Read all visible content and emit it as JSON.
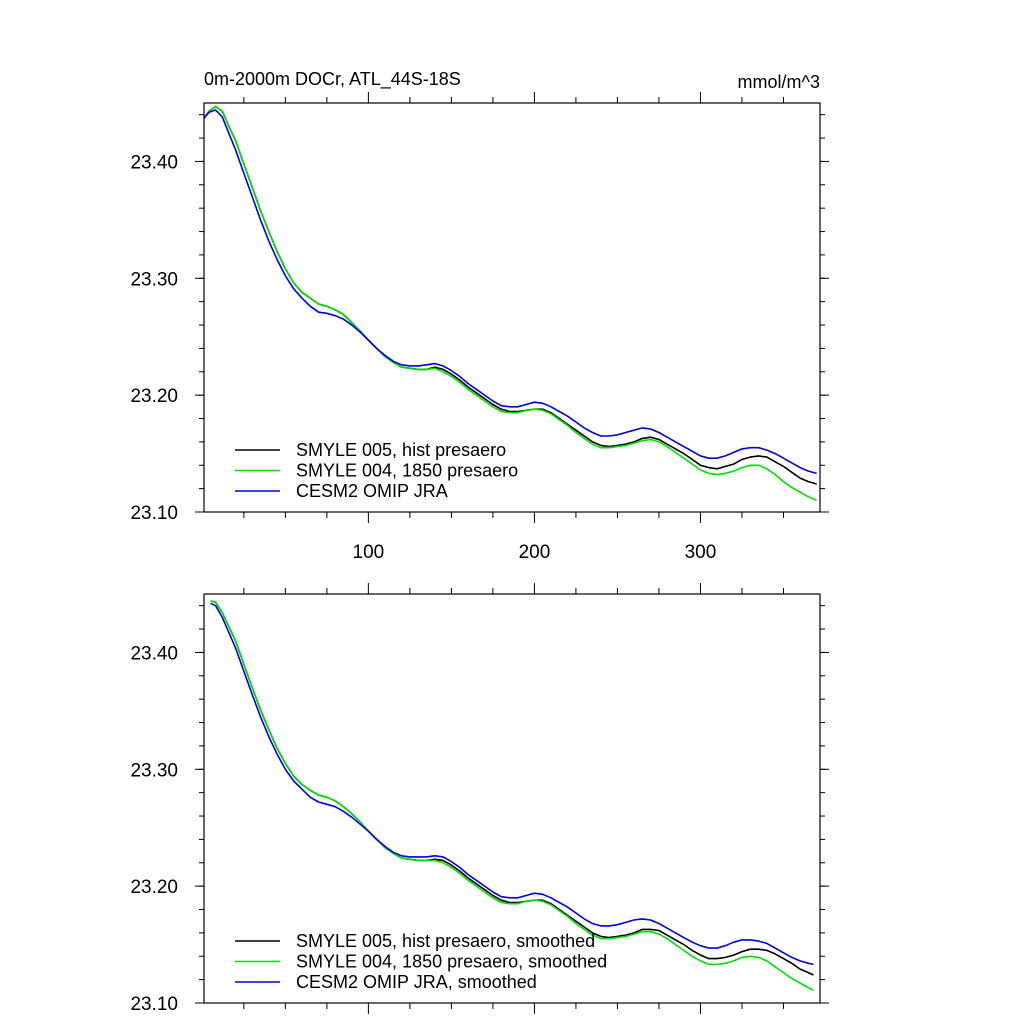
{
  "chart_data": [
    {
      "type": "line",
      "title": "0m-2000m DOCr, ATL_44S-18S",
      "units_label": "mmol/m^3",
      "xlim": [
        1,
        372
      ],
      "ylim": [
        23.1,
        23.45
      ],
      "x_ticks": [
        100,
        200,
        300
      ],
      "x_tick_labels": [
        "100",
        "200",
        "300"
      ],
      "y_ticks": [
        23.1,
        23.2,
        23.3,
        23.4
      ],
      "y_tick_labels": [
        "23.10",
        "23.20",
        "23.30",
        "23.40"
      ],
      "legend_position": "bottom-left",
      "grid": false,
      "series": [
        {
          "name": "SMYLE 005, hist presaero",
          "color": "#000000",
          "x": [
            1,
            4,
            8,
            12,
            16,
            20,
            25,
            30,
            35,
            40,
            45,
            50,
            55,
            60,
            65,
            70,
            75,
            80,
            85,
            90,
            95,
            100,
            105,
            110,
            115,
            120,
            125,
            130,
            135,
            140,
            145,
            150,
            155,
            160,
            165,
            170,
            175,
            180,
            185,
            190,
            195,
            200,
            205,
            210,
            215,
            220,
            225,
            230,
            235,
            240,
            245,
            250,
            255,
            260,
            265,
            270,
            275,
            280,
            285,
            290,
            295,
            300,
            305,
            310,
            315,
            320,
            325,
            330,
            335,
            340,
            345,
            350,
            355,
            360,
            365,
            370
          ],
          "y": [
            23.437,
            23.443,
            23.447,
            23.443,
            23.43,
            23.418,
            23.398,
            23.378,
            23.358,
            23.34,
            23.323,
            23.308,
            23.296,
            23.288,
            23.283,
            23.278,
            23.276,
            23.273,
            23.269,
            23.262,
            23.255,
            23.247,
            23.24,
            23.233,
            23.228,
            23.224,
            23.223,
            23.222,
            23.222,
            23.224,
            23.222,
            23.218,
            23.213,
            23.207,
            23.202,
            23.197,
            23.192,
            23.188,
            23.186,
            23.186,
            23.187,
            23.188,
            23.188,
            23.185,
            23.18,
            23.175,
            23.17,
            23.165,
            23.16,
            23.157,
            23.156,
            23.157,
            23.158,
            23.16,
            23.163,
            23.164,
            23.162,
            23.158,
            23.154,
            23.15,
            23.145,
            23.14,
            23.138,
            23.137,
            23.139,
            23.141,
            23.145,
            23.147,
            23.148,
            23.147,
            23.143,
            23.139,
            23.134,
            23.129,
            23.126,
            23.124
          ]
        },
        {
          "name": "SMYLE 004, 1850 presaero",
          "color": "#00e000",
          "x": [
            1,
            4,
            8,
            12,
            16,
            20,
            25,
            30,
            35,
            40,
            45,
            50,
            55,
            60,
            65,
            70,
            75,
            80,
            85,
            90,
            95,
            100,
            105,
            110,
            115,
            120,
            125,
            130,
            135,
            140,
            145,
            150,
            155,
            160,
            165,
            170,
            175,
            180,
            185,
            190,
            195,
            200,
            205,
            210,
            215,
            220,
            225,
            230,
            235,
            240,
            245,
            250,
            255,
            260,
            265,
            270,
            275,
            280,
            285,
            290,
            295,
            300,
            305,
            310,
            315,
            320,
            325,
            330,
            335,
            340,
            345,
            350,
            355,
            360,
            365,
            370
          ],
          "y": [
            23.437,
            23.443,
            23.447,
            23.443,
            23.43,
            23.418,
            23.398,
            23.378,
            23.358,
            23.34,
            23.323,
            23.308,
            23.296,
            23.288,
            23.283,
            23.278,
            23.276,
            23.273,
            23.269,
            23.262,
            23.255,
            23.247,
            23.24,
            23.233,
            23.228,
            23.224,
            23.223,
            23.222,
            23.222,
            23.223,
            23.22,
            23.216,
            23.211,
            23.205,
            23.2,
            23.195,
            23.19,
            23.186,
            23.185,
            23.185,
            23.187,
            23.188,
            23.187,
            23.184,
            23.179,
            23.174,
            23.168,
            23.163,
            23.158,
            23.155,
            23.155,
            23.156,
            23.157,
            23.159,
            23.161,
            23.162,
            23.16,
            23.156,
            23.151,
            23.146,
            23.141,
            23.136,
            23.133,
            23.132,
            23.133,
            23.135,
            23.138,
            23.14,
            23.14,
            23.137,
            23.132,
            23.126,
            23.121,
            23.117,
            23.113,
            23.11
          ]
        },
        {
          "name": "CESM2 OMIP JRA",
          "color": "#0000e0",
          "x": [
            1,
            4,
            8,
            12,
            16,
            20,
            25,
            30,
            35,
            40,
            45,
            50,
            55,
            60,
            65,
            70,
            75,
            80,
            85,
            90,
            95,
            100,
            105,
            110,
            115,
            120,
            125,
            130,
            135,
            140,
            145,
            150,
            155,
            160,
            165,
            170,
            175,
            180,
            185,
            190,
            195,
            200,
            205,
            210,
            215,
            220,
            225,
            230,
            235,
            240,
            245,
            250,
            255,
            260,
            265,
            270,
            275,
            280,
            285,
            290,
            295,
            300,
            305,
            310,
            315,
            320,
            325,
            330,
            335,
            340,
            345,
            350,
            355,
            360,
            365,
            370
          ],
          "y": [
            23.437,
            23.442,
            23.444,
            23.438,
            23.424,
            23.41,
            23.39,
            23.37,
            23.35,
            23.332,
            23.316,
            23.302,
            23.291,
            23.283,
            23.276,
            23.271,
            23.27,
            23.268,
            23.265,
            23.26,
            23.254,
            23.247,
            23.24,
            23.234,
            23.229,
            23.226,
            23.225,
            23.225,
            23.226,
            23.227,
            23.225,
            23.221,
            23.216,
            23.21,
            23.205,
            23.2,
            23.195,
            23.191,
            23.19,
            23.19,
            23.192,
            23.194,
            23.193,
            23.19,
            23.186,
            23.182,
            23.177,
            23.172,
            23.168,
            23.165,
            23.165,
            23.166,
            23.168,
            23.17,
            23.172,
            23.171,
            23.168,
            23.164,
            23.16,
            23.156,
            23.152,
            23.148,
            23.146,
            23.146,
            23.148,
            23.151,
            23.154,
            23.155,
            23.155,
            23.153,
            23.15,
            23.146,
            23.142,
            23.138,
            23.135,
            23.133
          ]
        }
      ]
    },
    {
      "type": "line",
      "title": "",
      "xlim": [
        1,
        372
      ],
      "ylim": [
        23.1,
        23.45
      ],
      "x_ticks": [
        100,
        200,
        300
      ],
      "y_ticks": [
        23.1,
        23.2,
        23.3,
        23.4
      ],
      "y_tick_labels": [
        "23.10",
        "23.20",
        "23.30",
        "23.40"
      ],
      "legend_position": "bottom-left",
      "grid": false,
      "series": [
        {
          "name": "SMYLE 005, hist presaero, smoothed",
          "color": "#000000",
          "x": [
            5,
            8,
            12,
            16,
            20,
            25,
            30,
            35,
            40,
            45,
            50,
            55,
            60,
            65,
            70,
            75,
            80,
            85,
            90,
            95,
            100,
            105,
            110,
            115,
            120,
            125,
            130,
            135,
            140,
            145,
            150,
            155,
            160,
            165,
            170,
            175,
            180,
            185,
            190,
            195,
            200,
            205,
            210,
            215,
            220,
            225,
            230,
            235,
            240,
            245,
            250,
            255,
            260,
            265,
            270,
            275,
            280,
            285,
            290,
            295,
            300,
            305,
            310,
            315,
            320,
            325,
            330,
            335,
            340,
            345,
            350,
            355,
            360,
            365,
            368
          ],
          "y": [
            23.444,
            23.443,
            23.434,
            23.422,
            23.41,
            23.39,
            23.37,
            23.351,
            23.334,
            23.318,
            23.305,
            23.294,
            23.287,
            23.282,
            23.278,
            23.276,
            23.273,
            23.268,
            23.262,
            23.255,
            23.247,
            23.24,
            23.233,
            23.228,
            23.224,
            23.223,
            23.222,
            23.222,
            23.223,
            23.222,
            23.218,
            23.213,
            23.207,
            23.202,
            23.197,
            23.192,
            23.188,
            23.186,
            23.186,
            23.187,
            23.188,
            23.188,
            23.185,
            23.18,
            23.175,
            23.17,
            23.165,
            23.16,
            23.157,
            23.156,
            23.157,
            23.158,
            23.16,
            23.163,
            23.163,
            23.162,
            23.158,
            23.154,
            23.15,
            23.145,
            23.141,
            23.138,
            23.138,
            23.139,
            23.141,
            23.144,
            23.146,
            23.146,
            23.145,
            23.142,
            23.138,
            23.134,
            23.129,
            23.126,
            23.124
          ]
        },
        {
          "name": "SMYLE 004, 1850 presaero, smoothed",
          "color": "#00e000",
          "x": [
            5,
            8,
            12,
            16,
            20,
            25,
            30,
            35,
            40,
            45,
            50,
            55,
            60,
            65,
            70,
            75,
            80,
            85,
            90,
            95,
            100,
            105,
            110,
            115,
            120,
            125,
            130,
            135,
            140,
            145,
            150,
            155,
            160,
            165,
            170,
            175,
            180,
            185,
            190,
            195,
            200,
            205,
            210,
            215,
            220,
            225,
            230,
            235,
            240,
            245,
            250,
            255,
            260,
            265,
            270,
            275,
            280,
            285,
            290,
            295,
            300,
            305,
            310,
            315,
            320,
            325,
            330,
            335,
            340,
            345,
            350,
            355,
            360,
            365,
            368
          ],
          "y": [
            23.444,
            23.443,
            23.434,
            23.422,
            23.41,
            23.39,
            23.37,
            23.351,
            23.334,
            23.318,
            23.305,
            23.294,
            23.287,
            23.282,
            23.278,
            23.276,
            23.273,
            23.268,
            23.262,
            23.255,
            23.247,
            23.24,
            23.233,
            23.228,
            23.224,
            23.223,
            23.222,
            23.222,
            23.222,
            23.22,
            23.216,
            23.211,
            23.205,
            23.2,
            23.195,
            23.19,
            23.186,
            23.185,
            23.185,
            23.187,
            23.188,
            23.187,
            23.184,
            23.179,
            23.174,
            23.168,
            23.163,
            23.158,
            23.155,
            23.155,
            23.156,
            23.157,
            23.159,
            23.161,
            23.161,
            23.159,
            23.155,
            23.15,
            23.145,
            23.14,
            23.136,
            23.133,
            23.133,
            23.134,
            23.136,
            23.139,
            23.14,
            23.139,
            23.136,
            23.131,
            23.126,
            23.121,
            23.117,
            23.113,
            23.111
          ]
        },
        {
          "name": "CESM2 OMIP JRA, smoothed",
          "color": "#0000e0",
          "x": [
            5,
            8,
            12,
            16,
            20,
            25,
            30,
            35,
            40,
            45,
            50,
            55,
            60,
            65,
            70,
            75,
            80,
            85,
            90,
            95,
            100,
            105,
            110,
            115,
            120,
            125,
            130,
            135,
            140,
            145,
            150,
            155,
            160,
            165,
            170,
            175,
            180,
            185,
            190,
            195,
            200,
            205,
            210,
            215,
            220,
            225,
            230,
            235,
            240,
            245,
            250,
            255,
            260,
            265,
            270,
            275,
            280,
            285,
            290,
            295,
            300,
            305,
            310,
            315,
            320,
            325,
            330,
            335,
            340,
            345,
            350,
            355,
            360,
            365,
            368
          ],
          "y": [
            23.442,
            23.44,
            23.43,
            23.417,
            23.404,
            23.384,
            23.364,
            23.345,
            23.328,
            23.313,
            23.3,
            23.29,
            23.283,
            23.276,
            23.272,
            23.27,
            23.268,
            23.264,
            23.259,
            23.253,
            23.247,
            23.24,
            23.234,
            23.229,
            23.226,
            23.225,
            23.225,
            23.225,
            23.226,
            23.225,
            23.221,
            23.216,
            23.21,
            23.205,
            23.2,
            23.195,
            23.191,
            23.19,
            23.19,
            23.192,
            23.194,
            23.193,
            23.19,
            23.186,
            23.182,
            23.177,
            23.172,
            23.168,
            23.166,
            23.166,
            23.167,
            23.169,
            23.171,
            23.172,
            23.171,
            23.168,
            23.164,
            23.16,
            23.156,
            23.152,
            23.149,
            23.147,
            23.147,
            23.149,
            23.152,
            23.154,
            23.154,
            23.153,
            23.151,
            23.147,
            23.143,
            23.139,
            23.136,
            23.134,
            23.133
          ]
        }
      ]
    }
  ]
}
